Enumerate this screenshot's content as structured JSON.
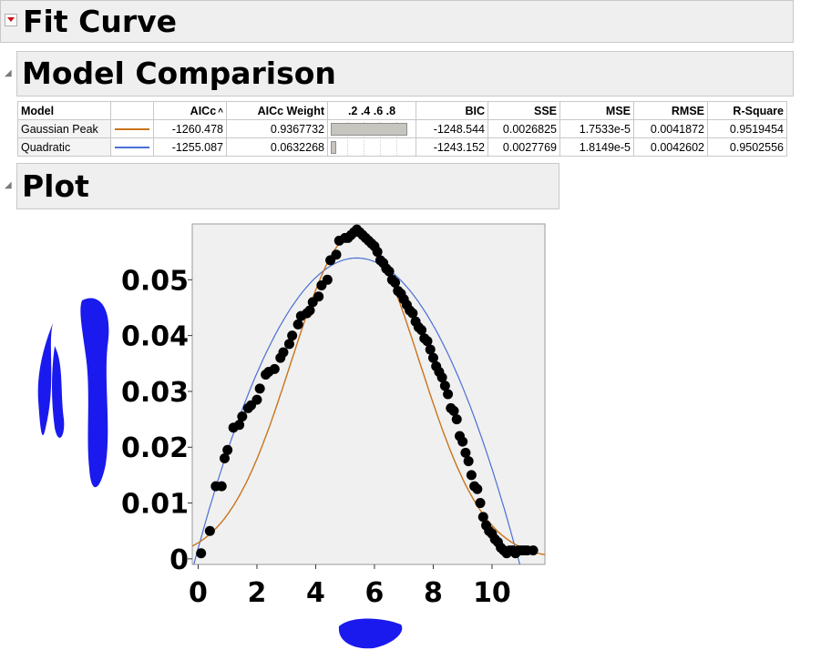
{
  "fit_curve": {
    "title": "Fit Curve"
  },
  "model_comparison": {
    "title": "Model Comparison",
    "columns": [
      "Model",
      "",
      "AICc",
      "AICc Weight",
      ".2  .4  .6  .8",
      "BIC",
      "SSE",
      "MSE",
      "RMSE",
      "R-Square"
    ],
    "sort_indicator": "^",
    "rows": [
      {
        "model": "Gaussian Peak",
        "color": "#c8741c",
        "aicc": "-1260.478",
        "aicc_weight": "0.9367732",
        "weight_fraction": 0.9367732,
        "bic": "-1248.544",
        "sse": "0.0026825",
        "mse": "1.7533e-5",
        "rmse": "0.0041872",
        "rsquare": "0.9519454"
      },
      {
        "model": "Quadratic",
        "color": "#4a6fd6",
        "aicc": "-1255.087",
        "aicc_weight": "0.0632268",
        "weight_fraction": 0.0632268,
        "bic": "-1243.152",
        "sse": "0.0027769",
        "mse": "1.8149e-5",
        "rmse": "0.0042602",
        "rsquare": "0.9502556"
      }
    ]
  },
  "plot": {
    "title": "Plot"
  },
  "chart_data": {
    "type": "scatter",
    "title": "",
    "xlabel": "",
    "ylabel": "",
    "xlim": [
      -0.2,
      11.8
    ],
    "ylim": [
      -0.001,
      0.06
    ],
    "x_ticks": [
      "0",
      "2",
      "4",
      "6",
      "8",
      "10"
    ],
    "y_ticks": [
      "0",
      "0.01",
      "0.02",
      "0.03",
      "0.04",
      "0.05"
    ],
    "grid": false,
    "points": {
      "x": [
        0.1,
        0.4,
        0.6,
        0.8,
        0.9,
        1.0,
        1.2,
        1.4,
        1.5,
        1.7,
        1.8,
        2.0,
        2.1,
        2.3,
        2.4,
        2.6,
        2.8,
        2.9,
        3.1,
        3.2,
        3.4,
        3.5,
        3.7,
        3.8,
        3.9,
        4.1,
        4.2,
        4.4,
        4.5,
        4.7,
        4.8,
        5.0,
        5.1,
        5.2,
        5.3,
        5.4,
        5.5,
        5.6,
        5.7,
        5.8,
        5.9,
        6.0,
        6.1,
        6.2,
        6.3,
        6.4,
        6.5,
        6.6,
        6.7,
        6.8,
        6.9,
        7.0,
        7.1,
        7.2,
        7.3,
        7.4,
        7.5,
        7.6,
        7.7,
        7.8,
        7.9,
        8.0,
        8.1,
        8.2,
        8.3,
        8.4,
        8.5,
        8.6,
        8.7,
        8.8,
        8.9,
        9.0,
        9.1,
        9.2,
        9.3,
        9.4,
        9.5,
        9.6,
        9.7,
        9.8,
        9.9,
        10.0,
        10.1,
        10.2,
        10.3,
        10.4,
        10.5,
        10.6,
        10.7,
        10.8,
        10.9,
        11.0,
        11.1,
        11.2,
        11.4
      ],
      "y": [
        0.001,
        0.005,
        0.013,
        0.013,
        0.018,
        0.0195,
        0.0235,
        0.024,
        0.0255,
        0.027,
        0.0275,
        0.0285,
        0.0305,
        0.033,
        0.0335,
        0.034,
        0.036,
        0.037,
        0.0385,
        0.04,
        0.042,
        0.0435,
        0.044,
        0.0445,
        0.046,
        0.047,
        0.049,
        0.05,
        0.0535,
        0.0545,
        0.057,
        0.0575,
        0.0575,
        0.058,
        0.0585,
        0.059,
        0.0585,
        0.058,
        0.0575,
        0.057,
        0.0565,
        0.056,
        0.055,
        0.0535,
        0.053,
        0.052,
        0.0515,
        0.05,
        0.0495,
        0.048,
        0.0475,
        0.0465,
        0.0455,
        0.0445,
        0.044,
        0.0425,
        0.0415,
        0.041,
        0.0395,
        0.039,
        0.0375,
        0.036,
        0.0345,
        0.0335,
        0.0325,
        0.031,
        0.0295,
        0.027,
        0.0265,
        0.025,
        0.022,
        0.021,
        0.019,
        0.0175,
        0.015,
        0.013,
        0.0125,
        0.01,
        0.0075,
        0.006,
        0.005,
        0.0045,
        0.0035,
        0.003,
        0.002,
        0.0015,
        0.001,
        0.0015,
        0.0015,
        0.001,
        0.0015,
        0.0015,
        0.0015,
        0.0015,
        0.0015
      ]
    },
    "series": [
      {
        "model": "Gaussian Peak",
        "color": "#c8741c",
        "peak": 0.0583,
        "center": 5.35,
        "sigma": 2.18
      },
      {
        "model": "Quadratic",
        "color": "#4a6fd6",
        "a": -0.001785,
        "b": 0.019275,
        "c": 0.00186
      }
    ]
  }
}
